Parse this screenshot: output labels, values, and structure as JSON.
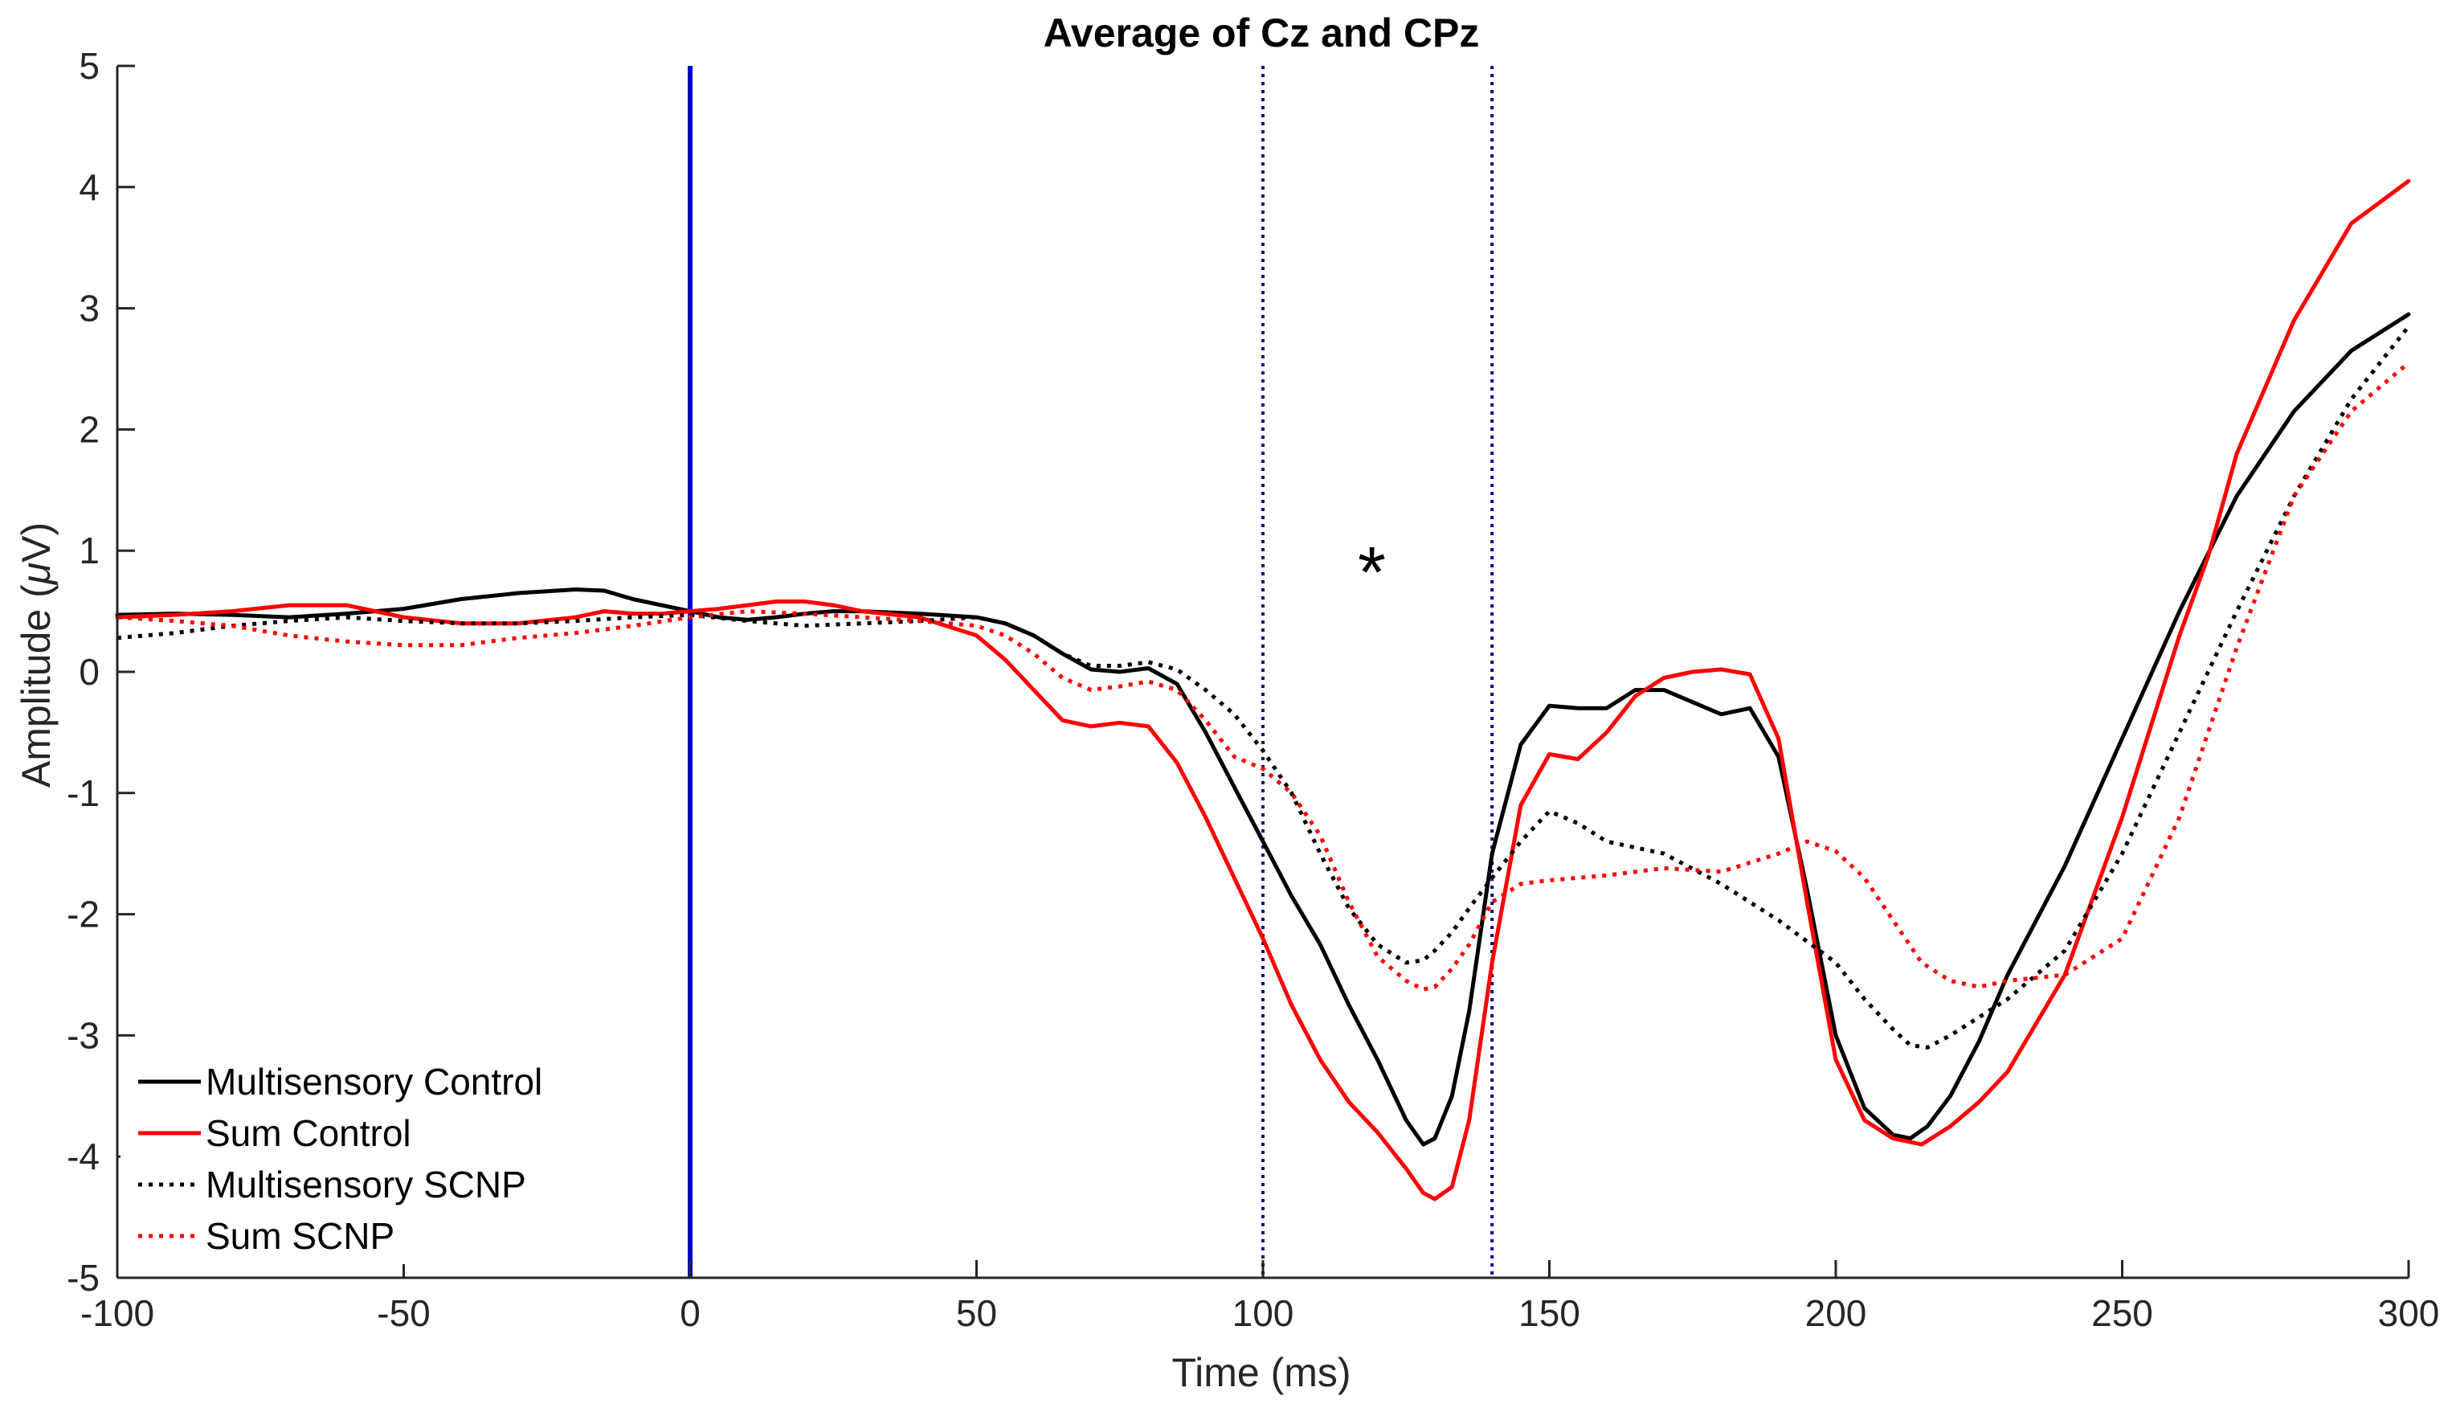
{
  "chart_data": {
    "type": "line",
    "title": "Average of Cz and CPz",
    "xlabel": "Time (ms)",
    "ylabel_prefix": "Amplitude (",
    "ylabel_mu": "μ",
    "ylabel_suffix": "V)",
    "xlim": [
      -100,
      300
    ],
    "ylim": [
      -5,
      5
    ],
    "xticks": [
      -100,
      -50,
      0,
      50,
      100,
      150,
      200,
      250,
      300
    ],
    "xtick_labels": [
      "-100",
      "-50",
      "0",
      "50",
      "100",
      "150",
      "200",
      "250",
      "300"
    ],
    "yticks": [
      -5,
      -4,
      -3,
      -2,
      -1,
      0,
      1,
      2,
      3,
      4,
      5
    ],
    "ytick_labels": [
      "-5",
      "-4",
      "-3",
      "-2",
      "-1",
      "0",
      "1",
      "2",
      "3",
      "4",
      "5"
    ],
    "grid": false,
    "legend_position": "bottom-left",
    "vertical_lines": [
      {
        "x": 0,
        "style": "solid",
        "color": "#0000c8"
      },
      {
        "x": 100,
        "style": "dotted",
        "color": "#00008b"
      },
      {
        "x": 140,
        "style": "dotted",
        "color": "#00008b"
      }
    ],
    "annotations": [
      {
        "text": "*",
        "x": 119,
        "y": 1.0
      }
    ],
    "series": [
      {
        "name": "Multisensory Control",
        "color": "#000000",
        "style": "solid",
        "x": [
          -100,
          -90,
          -80,
          -70,
          -60,
          -50,
          -40,
          -30,
          -20,
          -15,
          -10,
          -5,
          0,
          5,
          10,
          15,
          20,
          25,
          30,
          40,
          50,
          55,
          60,
          65,
          70,
          75,
          80,
          85,
          90,
          95,
          100,
          105,
          110,
          115,
          120,
          125,
          128,
          130,
          133,
          136,
          140,
          145,
          150,
          155,
          160,
          165,
          170,
          175,
          180,
          185,
          190,
          195,
          200,
          205,
          210,
          213,
          216,
          220,
          225,
          230,
          240,
          250,
          260,
          270,
          280,
          290,
          300
        ],
        "y": [
          0.47,
          0.48,
          0.47,
          0.45,
          0.48,
          0.52,
          0.6,
          0.65,
          0.68,
          0.67,
          0.6,
          0.55,
          0.5,
          0.45,
          0.43,
          0.45,
          0.48,
          0.5,
          0.5,
          0.48,
          0.45,
          0.4,
          0.3,
          0.15,
          0.02,
          0.0,
          0.03,
          -0.1,
          -0.5,
          -0.95,
          -1.4,
          -1.85,
          -2.25,
          -2.75,
          -3.2,
          -3.7,
          -3.9,
          -3.85,
          -3.5,
          -2.8,
          -1.5,
          -0.6,
          -0.28,
          -0.3,
          -0.3,
          -0.15,
          -0.15,
          -0.25,
          -0.35,
          -0.3,
          -0.7,
          -1.8,
          -3.0,
          -3.6,
          -3.82,
          -3.85,
          -3.75,
          -3.5,
          -3.05,
          -2.5,
          -1.6,
          -0.55,
          0.5,
          1.45,
          2.15,
          2.65,
          2.95
        ]
      },
      {
        "name": "Sum Control",
        "color": "#ff0000",
        "style": "solid",
        "x": [
          -100,
          -90,
          -80,
          -70,
          -60,
          -50,
          -40,
          -30,
          -20,
          -15,
          -10,
          -5,
          0,
          5,
          10,
          15,
          20,
          25,
          30,
          40,
          50,
          55,
          60,
          65,
          70,
          75,
          80,
          85,
          90,
          95,
          100,
          105,
          110,
          115,
          120,
          125,
          128,
          130,
          133,
          136,
          140,
          145,
          150,
          155,
          160,
          165,
          170,
          175,
          180,
          185,
          190,
          195,
          200,
          205,
          210,
          215,
          220,
          225,
          230,
          240,
          250,
          260,
          265,
          270,
          280,
          290,
          300
        ],
        "y": [
          0.45,
          0.47,
          0.5,
          0.55,
          0.55,
          0.45,
          0.4,
          0.4,
          0.45,
          0.5,
          0.48,
          0.48,
          0.5,
          0.52,
          0.55,
          0.58,
          0.58,
          0.55,
          0.5,
          0.45,
          0.3,
          0.1,
          -0.15,
          -0.4,
          -0.45,
          -0.42,
          -0.45,
          -0.75,
          -1.2,
          -1.7,
          -2.2,
          -2.75,
          -3.2,
          -3.55,
          -3.8,
          -4.1,
          -4.3,
          -4.35,
          -4.25,
          -3.7,
          -2.4,
          -1.1,
          -0.68,
          -0.72,
          -0.5,
          -0.2,
          -0.05,
          0.0,
          0.02,
          -0.02,
          -0.55,
          -1.9,
          -3.2,
          -3.7,
          -3.85,
          -3.9,
          -3.75,
          -3.55,
          -3.3,
          -2.5,
          -1.2,
          0.3,
          0.95,
          1.8,
          2.9,
          3.7,
          4.05
        ]
      },
      {
        "name": "Multisensory SCNP",
        "color": "#000000",
        "style": "dotted",
        "x": [
          -100,
          -90,
          -80,
          -70,
          -60,
          -50,
          -40,
          -30,
          -20,
          -10,
          0,
          10,
          20,
          30,
          40,
          50,
          55,
          60,
          65,
          70,
          75,
          80,
          85,
          90,
          95,
          100,
          105,
          110,
          115,
          120,
          125,
          128,
          130,
          133,
          136,
          140,
          145,
          150,
          155,
          160,
          170,
          180,
          190,
          200,
          205,
          210,
          213,
          216,
          220,
          230,
          240,
          250,
          260,
          270,
          280,
          290,
          300
        ],
        "y": [
          0.28,
          0.32,
          0.38,
          0.42,
          0.45,
          0.42,
          0.4,
          0.4,
          0.42,
          0.45,
          0.47,
          0.42,
          0.38,
          0.4,
          0.42,
          0.45,
          0.4,
          0.3,
          0.15,
          0.05,
          0.05,
          0.08,
          0.02,
          -0.15,
          -0.35,
          -0.65,
          -1.0,
          -1.5,
          -1.95,
          -2.25,
          -2.4,
          -2.38,
          -2.3,
          -2.15,
          -1.95,
          -1.7,
          -1.4,
          -1.15,
          -1.25,
          -1.4,
          -1.5,
          -1.75,
          -2.05,
          -2.4,
          -2.7,
          -2.95,
          -3.08,
          -3.1,
          -3.0,
          -2.7,
          -2.3,
          -1.5,
          -0.5,
          0.5,
          1.45,
          2.25,
          2.85
        ]
      },
      {
        "name": "Sum SCNP",
        "color": "#ff0000",
        "style": "dotted",
        "x": [
          -100,
          -90,
          -80,
          -70,
          -60,
          -50,
          -40,
          -30,
          -20,
          -10,
          0,
          10,
          20,
          30,
          40,
          50,
          55,
          60,
          65,
          70,
          75,
          80,
          85,
          90,
          95,
          100,
          105,
          110,
          115,
          120,
          125,
          128,
          130,
          133,
          136,
          140,
          145,
          150,
          160,
          170,
          180,
          190,
          195,
          200,
          205,
          210,
          215,
          220,
          225,
          230,
          240,
          250,
          260,
          270,
          280,
          290,
          300
        ],
        "y": [
          0.45,
          0.42,
          0.38,
          0.3,
          0.25,
          0.22,
          0.22,
          0.28,
          0.32,
          0.38,
          0.45,
          0.5,
          0.48,
          0.45,
          0.42,
          0.38,
          0.3,
          0.15,
          -0.05,
          -0.15,
          -0.12,
          -0.08,
          -0.15,
          -0.4,
          -0.7,
          -0.8,
          -1.0,
          -1.35,
          -1.9,
          -2.35,
          -2.55,
          -2.62,
          -2.6,
          -2.45,
          -2.25,
          -1.9,
          -1.75,
          -1.72,
          -1.68,
          -1.62,
          -1.65,
          -1.5,
          -1.4,
          -1.48,
          -1.7,
          -2.05,
          -2.4,
          -2.55,
          -2.6,
          -2.55,
          -2.5,
          -2.2,
          -1.2,
          0.2,
          1.45,
          2.15,
          2.55
        ]
      }
    ]
  }
}
